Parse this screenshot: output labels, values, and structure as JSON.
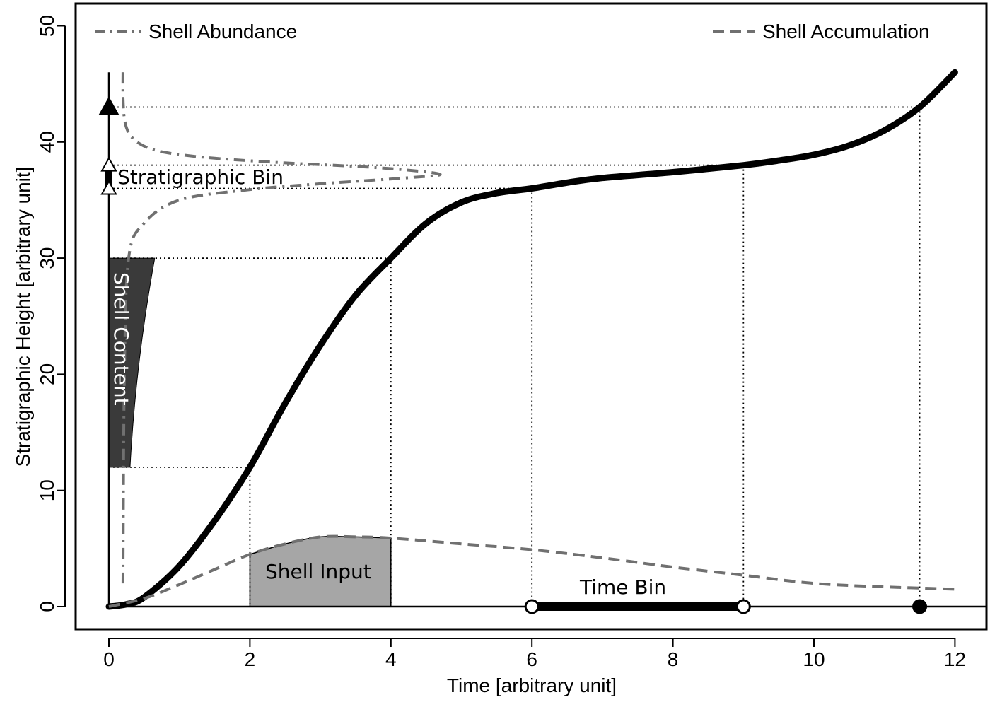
{
  "chart_data": {
    "type": "line",
    "title": "",
    "xlabel": "Time [arbitrary unit]",
    "ylabel": "Stratigraphic Height [arbitrary unit]",
    "xlim": [
      -0.5,
      12.5
    ],
    "ylim": [
      -2,
      52
    ],
    "xticks": [
      0,
      2,
      4,
      6,
      8,
      10,
      12
    ],
    "yticks": [
      0,
      10,
      20,
      30,
      40,
      50
    ],
    "grid": false,
    "legend_placement": "top",
    "colors": {
      "main": "#000000",
      "secondary": "#707070",
      "content_fill": "#3a3a3a",
      "input_fill": "#a6a6a6"
    },
    "legend": [
      {
        "label": "Shell Abundance",
        "style": "dashdot"
      },
      {
        "label": "Shell Accumulation",
        "style": "dashed"
      }
    ],
    "series": [
      {
        "style": "solid-thick",
        "x": [
          0,
          0.25,
          0.5,
          1.0,
          1.5,
          2.0,
          2.5,
          3.0,
          3.5,
          4.0,
          4.5,
          5.0,
          5.5,
          6.0,
          6.5,
          7.0,
          8.0,
          9.0,
          9.5,
          10.0,
          10.5,
          11.0,
          11.5,
          12.0
        ],
        "y": [
          0,
          0.2,
          0.8,
          3.5,
          7.4,
          12.0,
          17.5,
          22.5,
          26.8,
          30.0,
          33.0,
          34.8,
          35.6,
          36.0,
          36.5,
          36.9,
          37.4,
          38.0,
          38.4,
          38.9,
          39.7,
          41.0,
          43.0,
          46.0
        ]
      },
      {
        "name": "Shell Abundance",
        "style": "dashdot",
        "x": [
          0.2,
          0.2,
          0.22,
          0.28,
          0.4,
          0.6,
          0.9,
          1.5,
          2.5,
          3.5,
          4.2,
          4.7,
          4.2,
          3.0,
          2.0,
          1.0,
          0.5,
          0.28,
          0.22,
          0.2
        ],
        "y": [
          46,
          44,
          42,
          40.8,
          40.0,
          39.4,
          39.0,
          38.6,
          38.2,
          37.9,
          37.6,
          37.2,
          36.9,
          36.4,
          35.9,
          35.0,
          33.0,
          30.0,
          20.0,
          2.0
        ]
      },
      {
        "name": "Shell Accumulation",
        "style": "dashed",
        "x": [
          0,
          0.5,
          1.0,
          1.5,
          2.0,
          2.5,
          3.0,
          3.5,
          4.0,
          5.0,
          6.0,
          7.0,
          8.0,
          9.0,
          10.0,
          11.0,
          12.0
        ],
        "y": [
          0,
          0.7,
          1.9,
          3.2,
          4.5,
          5.4,
          6.0,
          6.0,
          5.9,
          5.4,
          4.9,
          4.2,
          3.4,
          2.7,
          2.0,
          1.7,
          1.5
        ]
      }
    ],
    "shaded_regions": [
      {
        "label": "Shell Content",
        "x_left": 0,
        "y_bottom": 12,
        "y_top": 30,
        "x_right_bottom": 0.3,
        "x_right_top": 0.65
      },
      {
        "label": "Shell Input",
        "x_start": 2,
        "x_end": 4,
        "top_x": [
          2.0,
          2.5,
          3.0,
          3.5,
          4.0
        ],
        "top_y": [
          4.5,
          5.4,
          6.0,
          6.0,
          5.9
        ]
      }
    ],
    "reference_lines": [
      {
        "from": [
          0,
          43
        ],
        "to": [
          11.5,
          43
        ],
        "down_to_zero": true
      },
      {
        "from": [
          0,
          38
        ],
        "to": [
          9,
          38
        ],
        "down_to_zero": true
      },
      {
        "from": [
          0,
          36
        ],
        "to": [
          6,
          36
        ],
        "down_to_zero": true
      },
      {
        "from": [
          0,
          30
        ],
        "to": [
          4,
          30
        ],
        "down_to_zero": true
      },
      {
        "from": [
          0,
          12
        ],
        "to": [
          2,
          12
        ],
        "down_to_zero": true
      }
    ],
    "vertical_axis_line": {
      "x": 0,
      "y_from": 0,
      "y_to": 46
    },
    "markers": [
      {
        "x": 0,
        "y": 43,
        "shape": "triangle-filled"
      },
      {
        "x": 0,
        "y": 38,
        "shape": "triangle-open"
      },
      {
        "x": 0,
        "y": 36,
        "shape": "triangle-open"
      },
      {
        "x": 6,
        "y": 0,
        "shape": "circle-open"
      },
      {
        "x": 9,
        "y": 0,
        "shape": "circle-open"
      },
      {
        "x": 11.5,
        "y": 0,
        "shape": "circle-filled"
      }
    ],
    "stratigraphic_bin": {
      "label": "Stratigraphic Bin",
      "x": 0,
      "y_from": 36,
      "y_to": 38
    },
    "time_bin": {
      "label": "Time Bin",
      "x_from": 6,
      "x_to": 9,
      "y": 0
    },
    "annotations": {
      "shell_content": "Shell Content",
      "shell_input": "Shell Input"
    }
  }
}
